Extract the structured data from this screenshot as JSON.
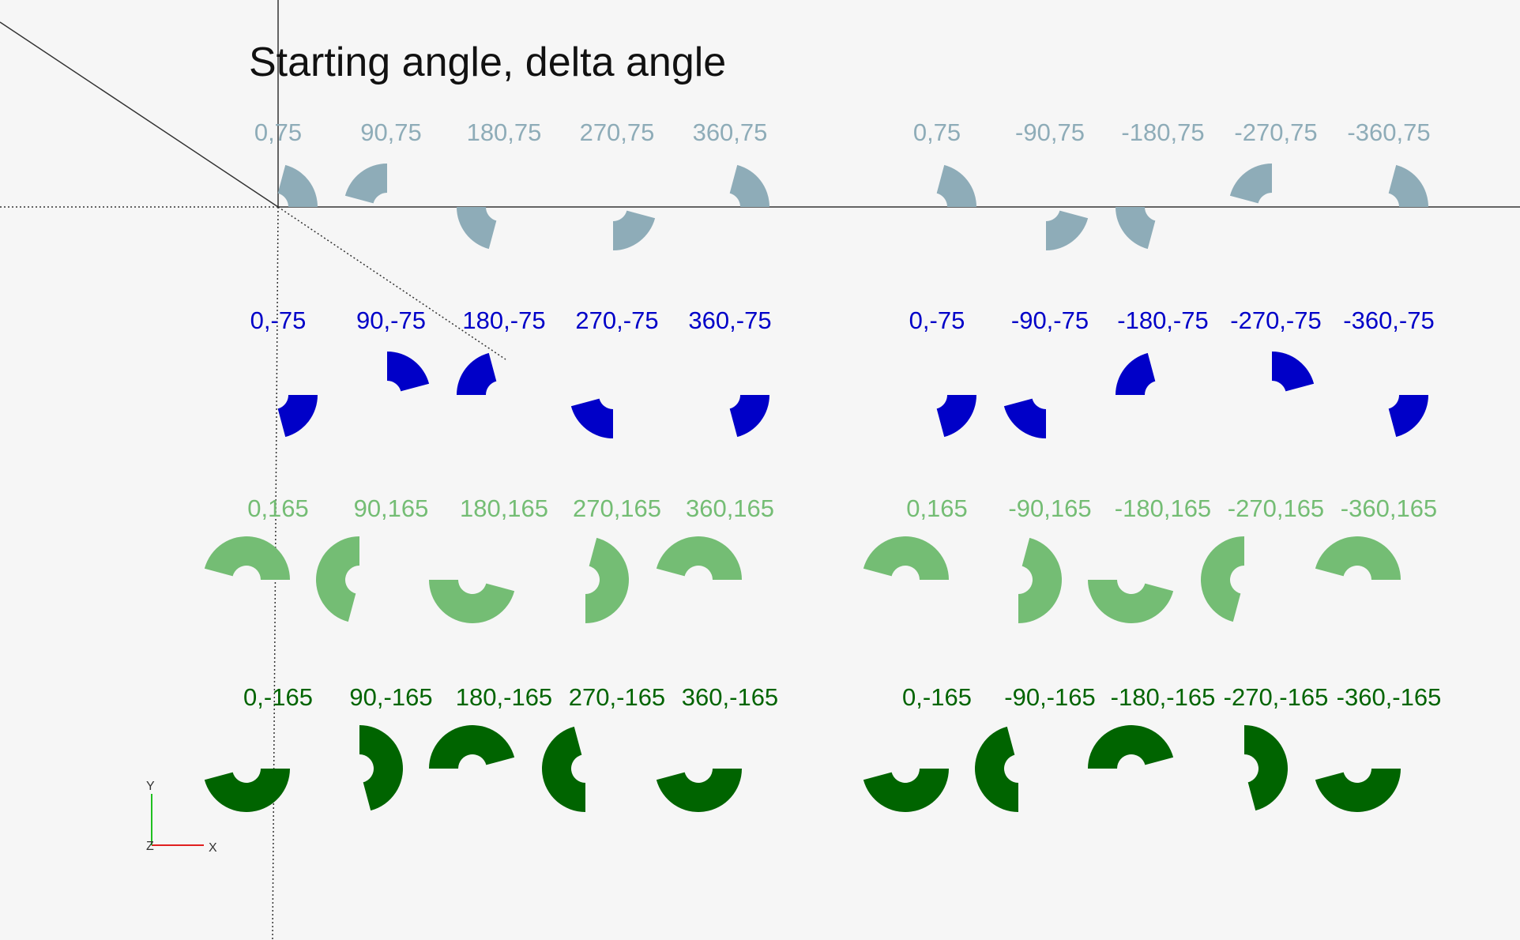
{
  "title": "Starting angle, delta angle",
  "colors": {
    "background": "#f6f6f6",
    "axis": "#333333",
    "gray_blue": "#8eacb8",
    "blue": "#0000c8",
    "light_green": "#74bd74",
    "dark_green": "#006400",
    "gizmo_x": "#e02020",
    "gizmo_y": "#20c020"
  },
  "rows": [
    {
      "color": "#8eacb8",
      "labels": [
        "0,75",
        "90,75",
        "180,75",
        "270,75",
        "360,75",
        "0,75",
        "-90,75",
        "-180,75",
        "-270,75",
        "-360,75"
      ]
    },
    {
      "color": "#0000c8",
      "labels": [
        "0,-75",
        "90,-75",
        "180,-75",
        "270,-75",
        "360,-75",
        "0,-75",
        "-90,-75",
        "-180,-75",
        "-270,-75",
        "-360,-75"
      ]
    },
    {
      "color": "#74bd74",
      "labels": [
        "0,165",
        "90,165",
        "180,165",
        "270,165",
        "360,165",
        "0,165",
        "-90,165",
        "-180,165",
        "-270,165",
        "-360,165"
      ]
    },
    {
      "color": "#006400",
      "labels": [
        "0,-165",
        "90,-165",
        "180,-165",
        "270,-165",
        "360,-165",
        "0,-165",
        "-90,-165",
        "-180,-165",
        "-270,-165",
        "-360,-165"
      ]
    }
  ],
  "gizmo": {
    "x": "X",
    "y": "Y",
    "z": "Z"
  }
}
